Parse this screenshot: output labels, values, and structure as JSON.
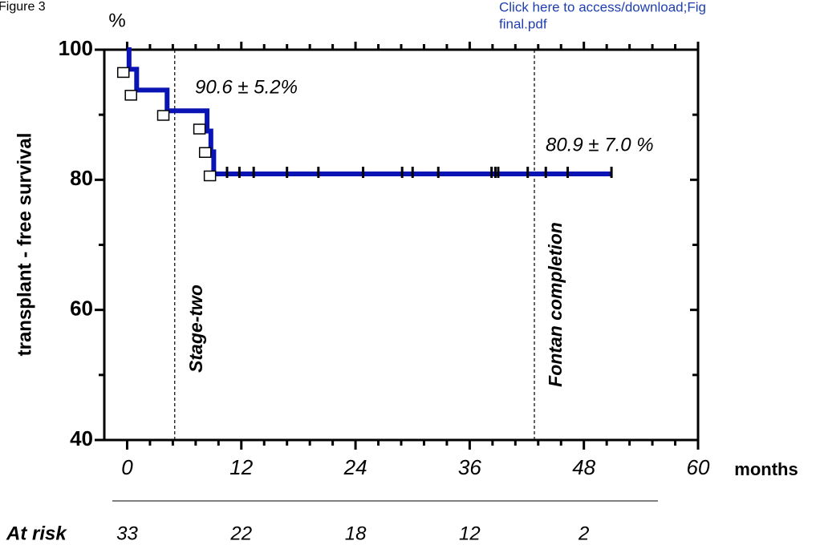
{
  "chart_data": {
    "type": "step",
    "figure_label": "Figure 3",
    "link_text": "Click here to access/download;Fig",
    "link_text_2": "final.pdf",
    "y_unit": "%",
    "ylabel": "transplant - free survival",
    "xlabel": "months",
    "xlim": [
      -2.4,
      60
    ],
    "ylim": [
      40,
      100
    ],
    "xticks": [
      0,
      12,
      24,
      36,
      48,
      60
    ],
    "yticks": [
      40,
      60,
      80,
      100
    ],
    "xminorticks": [
      2.4,
      4.8,
      7.2,
      9.6,
      14.4,
      16.8,
      19.2,
      21.6,
      26.4,
      28.8,
      31.2,
      33.6,
      38.4,
      40.8,
      43.2,
      45.6,
      50.4,
      52.8,
      55.2,
      57.6
    ],
    "yminorticks": [
      50,
      70,
      90
    ],
    "series": [
      {
        "color": "#0a14b4",
        "x": [
          0,
          0.2,
          0.2,
          1,
          1,
          4.2,
          4.2,
          8.4,
          8.4,
          8.8,
          8.8,
          9.1,
          9.1,
          51
        ],
        "values": [
          100,
          100,
          97,
          97,
          93.8,
          93.8,
          90.6,
          90.6,
          87.5,
          87.5,
          84.3,
          84.3,
          80.9,
          80.9
        ]
      }
    ],
    "censor_x": [
      10.5,
      11.8,
      13.3,
      16.8,
      20.1,
      24.8,
      28.9,
      30.0,
      32.7,
      38.3,
      38.7,
      39.0,
      42.1,
      44.0,
      46.3,
      50.9
    ],
    "censor_y": [
      80.9,
      80.9,
      80.9,
      80.9,
      80.9,
      80.9,
      80.9,
      80.9,
      80.9,
      80.9,
      80.9,
      80.9,
      80.9,
      80.9,
      80.9,
      80.9
    ],
    "marker_x": [
      -0.4,
      0.4,
      3.8,
      7.6,
      8.2,
      8.7
    ],
    "marker_y": [
      96.5,
      93,
      89.9,
      87.8,
      84.2,
      80.6
    ],
    "vlines": [
      {
        "x": 5,
        "label": "Stage-two"
      },
      {
        "x": 42.8,
        "label": "Fontan completion"
      }
    ],
    "annotations": [
      "90.6 ± 5.2%",
      "80.9 ± 7.0 %"
    ],
    "at_risk_label": "At risk",
    "at_risk_x": [
      0,
      12,
      24,
      36,
      48
    ],
    "at_risk": [
      33,
      22,
      18,
      12,
      2
    ]
  }
}
